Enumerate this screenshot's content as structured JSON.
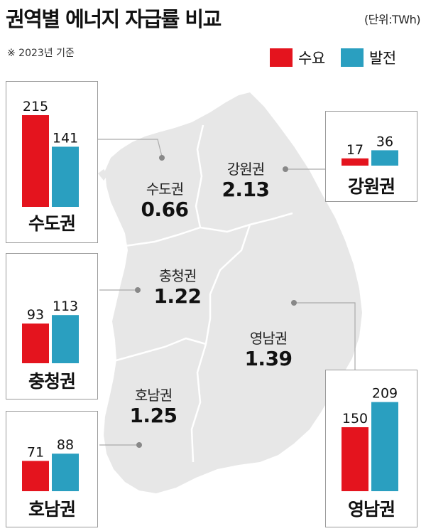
{
  "header": {
    "title": "권역별 에너지 자급률 비교",
    "unit": "(단위:TWh)",
    "note": "※ 2023년 기준"
  },
  "legend": {
    "demand": {
      "label": "수요",
      "color": "#e4141e"
    },
    "generation": {
      "label": "발전",
      "color": "#2a9fc0"
    }
  },
  "map_labels": [
    {
      "name": "수도권",
      "value": "0.66"
    },
    {
      "name": "강원권",
      "value": "2.13"
    },
    {
      "name": "충청권",
      "value": "1.22"
    },
    {
      "name": "영남권",
      "value": "1.39"
    },
    {
      "name": "호남권",
      "value": "1.25"
    }
  ],
  "chart_data": {
    "type": "bar",
    "categories": [
      "수도권",
      "강원권",
      "충청권",
      "호남권",
      "영남권"
    ],
    "series": [
      {
        "name": "수요",
        "values": [
          215,
          17,
          93,
          71,
          150
        ]
      },
      {
        "name": "발전",
        "values": [
          141,
          36,
          113,
          88,
          209
        ]
      }
    ],
    "title": "권역별 에너지 자급률 비교",
    "ylabel": "(단위:TWh)",
    "self_sufficiency": [
      0.66,
      2.13,
      1.22,
      1.25,
      1.39
    ],
    "colors": {
      "demand": "#e4141e",
      "generation": "#2a9fc0"
    }
  }
}
